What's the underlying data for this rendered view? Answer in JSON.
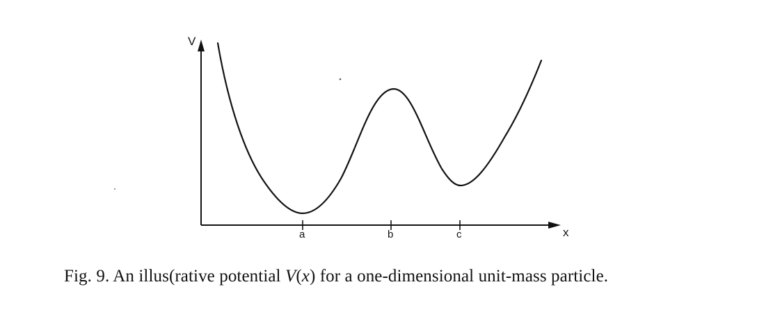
{
  "figure": {
    "y_axis_label": "V",
    "x_axis_label": "x",
    "tick_labels": [
      "a",
      "b",
      "c"
    ],
    "line_color": "#111111"
  },
  "caption": {
    "prefix": "Fig. 9.  An illus(rative potential ",
    "symbol": "V",
    "argument_open": "(",
    "argument_var": "x",
    "argument_close": ")",
    "suffix": " for a one-dimensional unit-mass particle."
  },
  "chart_data": {
    "type": "line",
    "title": "",
    "xlabel": "x",
    "ylabel": "V",
    "x_ticks": [
      "a",
      "b",
      "c"
    ],
    "grid": false,
    "legend": "none",
    "series": [
      {
        "x": [
          0.15,
          0.5,
          1.0,
          1.5,
          1.95,
          2.3,
          2.7,
          3.0,
          3.3,
          3.7,
          4.0,
          4.4,
          4.8,
          5.2
        ],
        "y": [
          9.3,
          6.8,
          4.3,
          2.3,
          1.0,
          0.7,
          2.9,
          6.5,
          7.4,
          5.8,
          2.5,
          2.4,
          4.5,
          9.6
        ]
      }
    ]
  }
}
